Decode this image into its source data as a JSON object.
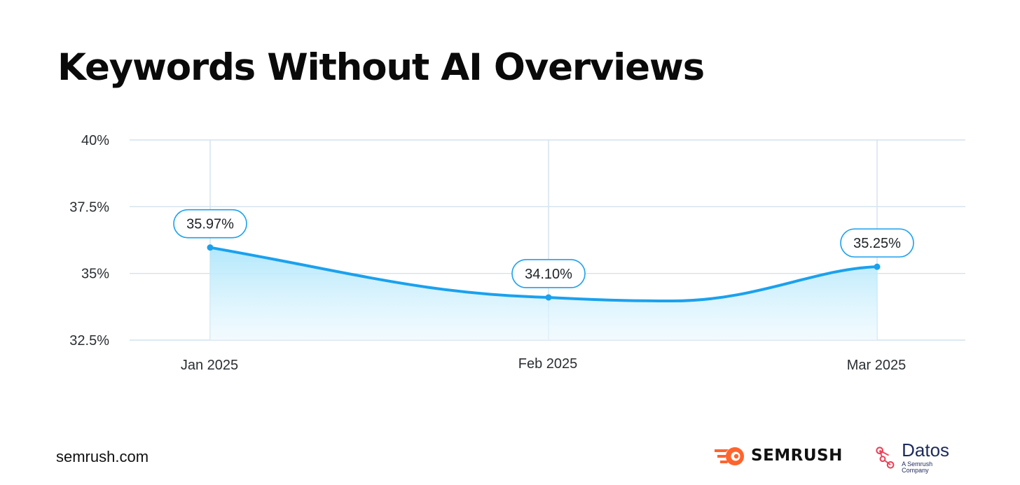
{
  "title": "Keywords Without AI Overviews",
  "footer": {
    "site": "semrush.com"
  },
  "logos": {
    "semrush": {
      "word": "SEMRUSH",
      "accent": "#ff642d",
      "icon": "semrush-flame-icon"
    },
    "datos": {
      "word": "Datos",
      "sub": "A Semrush Company",
      "accent": "#e8435a",
      "icon": "datos-nodes-icon"
    }
  },
  "colors": {
    "line": "#1aa1ee",
    "grid": "#d4e2ee",
    "pill_border": "#1aa1ee"
  },
  "chart_data": {
    "type": "line",
    "title": "Keywords Without AI Overviews",
    "categories": [
      "Jan 2025",
      "Feb 2025",
      "Mar 2025"
    ],
    "series": [
      {
        "values": [
          35.97,
          34.1,
          35.25
        ],
        "labels": [
          "35.97%",
          "34.10%",
          "35.25%"
        ]
      }
    ],
    "yticks": [
      "40%",
      "37.5%",
      "35%",
      "32.5%"
    ],
    "ytick_values": [
      40,
      37.5,
      35,
      32.5
    ],
    "ylim": [
      32.5,
      40
    ],
    "grid": true,
    "area_fill": true
  }
}
